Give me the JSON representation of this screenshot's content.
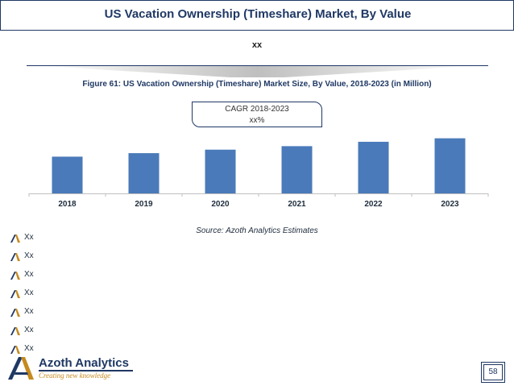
{
  "header": {
    "title": "US Vacation Ownership (Timeshare) Market, By Value",
    "subtitle": "xx"
  },
  "figure": {
    "caption": "Figure 61: US Vacation Ownership (Timeshare) Market Size, By Value, 2018-2023 (in Million)"
  },
  "cagr": {
    "label": "CAGR 2018-2023",
    "value": "xx%"
  },
  "chart_data": {
    "type": "bar",
    "categories": [
      "2018",
      "2019",
      "2020",
      "2021",
      "2022",
      "2023"
    ],
    "values": [
      42,
      46,
      50,
      54,
      59,
      63
    ],
    "title": "",
    "xlabel": "",
    "ylabel": "",
    "ylim": [
      0,
      70
    ],
    "grid": false,
    "bar_color": "#4a7ab9"
  },
  "source": "Source: Azoth Analytics Estimates",
  "bullets": [
    "Xx",
    "Xx",
    "Xx",
    "Xx",
    "Xx",
    "Xx",
    "Xx"
  ],
  "logo": {
    "name": "Azoth Analytics",
    "tagline": "Creating new knowledge"
  },
  "page_number": "58",
  "colors": {
    "brand_navy": "#1f3864",
    "accent_gold": "#c58a1e",
    "bar_blue": "#4a7ab9"
  }
}
